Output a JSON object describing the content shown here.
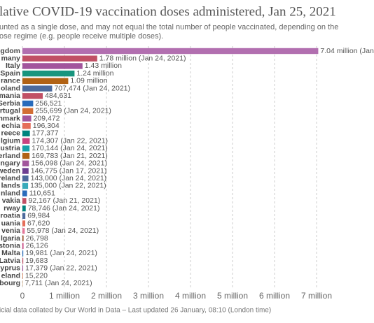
{
  "chart_data": {
    "type": "bar",
    "orientation": "horizontal",
    "title": "lative COVID-19 vaccination doses administered, Jan 25, 2021",
    "subtitle": [
      "unted as a single dose, and may not equal the total number of people vaccinated, depending on the",
      "ose regime (e.g. people receive multiple doses)."
    ],
    "footer": "icial data collated by Our World in Data – Last updated 26 January, 08:10 (London time)",
    "categories": [
      "gdom",
      "many",
      "Italy",
      "Spain",
      "rance",
      "oland",
      "mania",
      "Serbia",
      "rtugal",
      "nmark",
      "echia",
      "reece",
      "lgium",
      "ustria",
      "erland",
      "ngary",
      "weden",
      "reland",
      "lands",
      "nland",
      "vakia",
      "rway",
      "roatia",
      "uania",
      "venia",
      "lgaria",
      "stonia",
      "Malta",
      "Latvia",
      "yprus",
      "eland",
      "bourg"
    ],
    "values": [
      7040000,
      1780000,
      1430000,
      1240000,
      1090000,
      707474,
      484631,
      256521,
      255699,
      209472,
      196304,
      177377,
      174307,
      170144,
      169783,
      156098,
      146775,
      143000,
      135000,
      110651,
      92167,
      78746,
      69984,
      67620,
      55978,
      26798,
      26126,
      19981,
      19683,
      17379,
      15220,
      7711
    ],
    "value_labels": [
      "7.04 million (Jan",
      "1.78 million (Jan 24, 2021)",
      "1.43 million",
      "1.24 million",
      "1.09 million",
      "707,474 (Jan 24, 2021)",
      "484,631",
      "256,521",
      "255,699 (Jan 24, 2021)",
      "209,472",
      "196,304",
      "177,377",
      "174,307 (Jan 22, 2021)",
      "170,144 (Jan 24, 2021)",
      "169,783 (Jan 21, 2021)",
      "156,098 (Jan 24, 2021)",
      "146,775 (Jan 17, 2021)",
      "143,000 (Jan 24, 2021)",
      "135,000 (Jan 22, 2021)",
      "110,651",
      "92,167 (Jan 21, 2021)",
      "78,746 (Jan 24, 2021)",
      "69,984",
      "67,620",
      "55,978 (Jan 24, 2021)",
      "26,798",
      "26,126",
      "19,981 (Jan 24, 2021)",
      "19,683",
      "17,379 (Jan 22, 2021)",
      "15,220",
      "7,711 (Jan 24, 2021)"
    ],
    "colors": [
      "#b26fb0",
      "#c15065",
      "#a2559c",
      "#18957e",
      "#b16214",
      "#4c6a9c",
      "#c15065",
      "#286bbb",
      "#d26e34",
      "#a2559c",
      "#e56e5a",
      "#00847e",
      "#c9437f",
      "#18a0a7",
      "#b16214",
      "#a2559c",
      "#6d3e91",
      "#4c6a9c",
      "#38aaba",
      "#286bbb",
      "#c15065",
      "#00847e",
      "#4c6a9c",
      "#e56e5a",
      "#e5789a",
      "#9a5129",
      "#c9437f",
      "#286bbb",
      "#c15065",
      "#a2559c",
      "#d98c6a",
      "#bc8e5a"
    ],
    "xlim": [
      0,
      7000000
    ],
    "xticks": [
      0,
      {
        "value": 1000000,
        "label": "1 million"
      },
      {
        "value": 2000000,
        "label": "2 million"
      },
      {
        "value": 3000000,
        "label": "3 million"
      },
      {
        "value": 4000000,
        "label": "4 million"
      },
      {
        "value": 5000000,
        "label": "5 million"
      },
      {
        "value": 6000000,
        "label": "6 million"
      },
      {
        "value": 7000000,
        "label": "7 million"
      }
    ],
    "grid": true
  }
}
